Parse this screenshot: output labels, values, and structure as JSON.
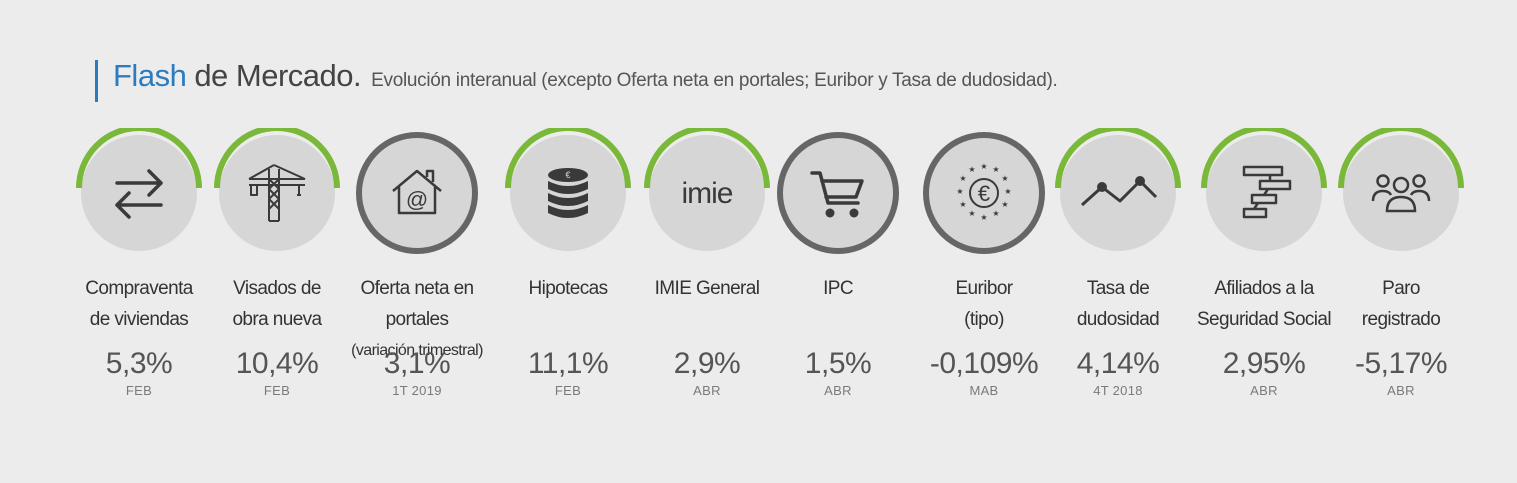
{
  "header": {
    "title_accent": "Flash",
    "title_rest": "de Mercado.",
    "subtitle": "Evolución interanual (excepto Oferta neta en portales; Euribor y Tasa de dudosidad)."
  },
  "colors": {
    "accent_blue": "#2b7bbf",
    "ring_green": "#7ab83a",
    "ring_gray": "#666666",
    "circle_fill": "#d6d6d6",
    "icon_dark": "#3a3a3a"
  },
  "indicators": [
    {
      "icon": "arrows-exchange-icon",
      "ring": "green",
      "label_l1": "Compraventa",
      "label_l2": "de viviendas",
      "value": "5,3%",
      "period": "FEB"
    },
    {
      "icon": "crane-icon",
      "ring": "green",
      "label_l1": "Visados de",
      "label_l2": "obra nueva",
      "value": "10,4%",
      "period": "FEB"
    },
    {
      "icon": "house-at-icon",
      "ring": "gray",
      "label_l1": "Oferta neta en portales",
      "label_l2": "(variación trimestral)",
      "value": "3,1%",
      "period": "1T 2019"
    },
    {
      "icon": "coin-stack-icon",
      "ring": "green",
      "label_l1": "Hipotecas",
      "label_l2": "",
      "value": "11,1%",
      "period": "FEB"
    },
    {
      "icon": "imie-logo-icon",
      "icon_text": "imie",
      "ring": "green",
      "label_l1": "IMIE General",
      "label_l2": "",
      "value": "2,9%",
      "period": "ABR"
    },
    {
      "icon": "shopping-cart-icon",
      "ring": "gray",
      "label_l1": "IPC",
      "label_l2": "",
      "value": "1,5%",
      "period": "ABR"
    },
    {
      "icon": "euro-stars-icon",
      "ring": "gray",
      "label_l1": "Euribor",
      "label_l2": "(tipo)",
      "value": "-0,109%",
      "period": "MAB"
    },
    {
      "icon": "trend-line-icon",
      "ring": "green",
      "label_l1": "Tasa de",
      "label_l2": "dudosidad",
      "value": "4,14%",
      "period": "4T 2018"
    },
    {
      "icon": "bars-steps-icon",
      "ring": "green",
      "label_l1": "Afiliados a la",
      "label_l2": "Seguridad Social",
      "value": "2,95%",
      "period": "ABR"
    },
    {
      "icon": "people-group-icon",
      "ring": "green",
      "label_l1": "Paro",
      "label_l2": "registrado",
      "value": "-5,17%",
      "period": "ABR"
    }
  ]
}
